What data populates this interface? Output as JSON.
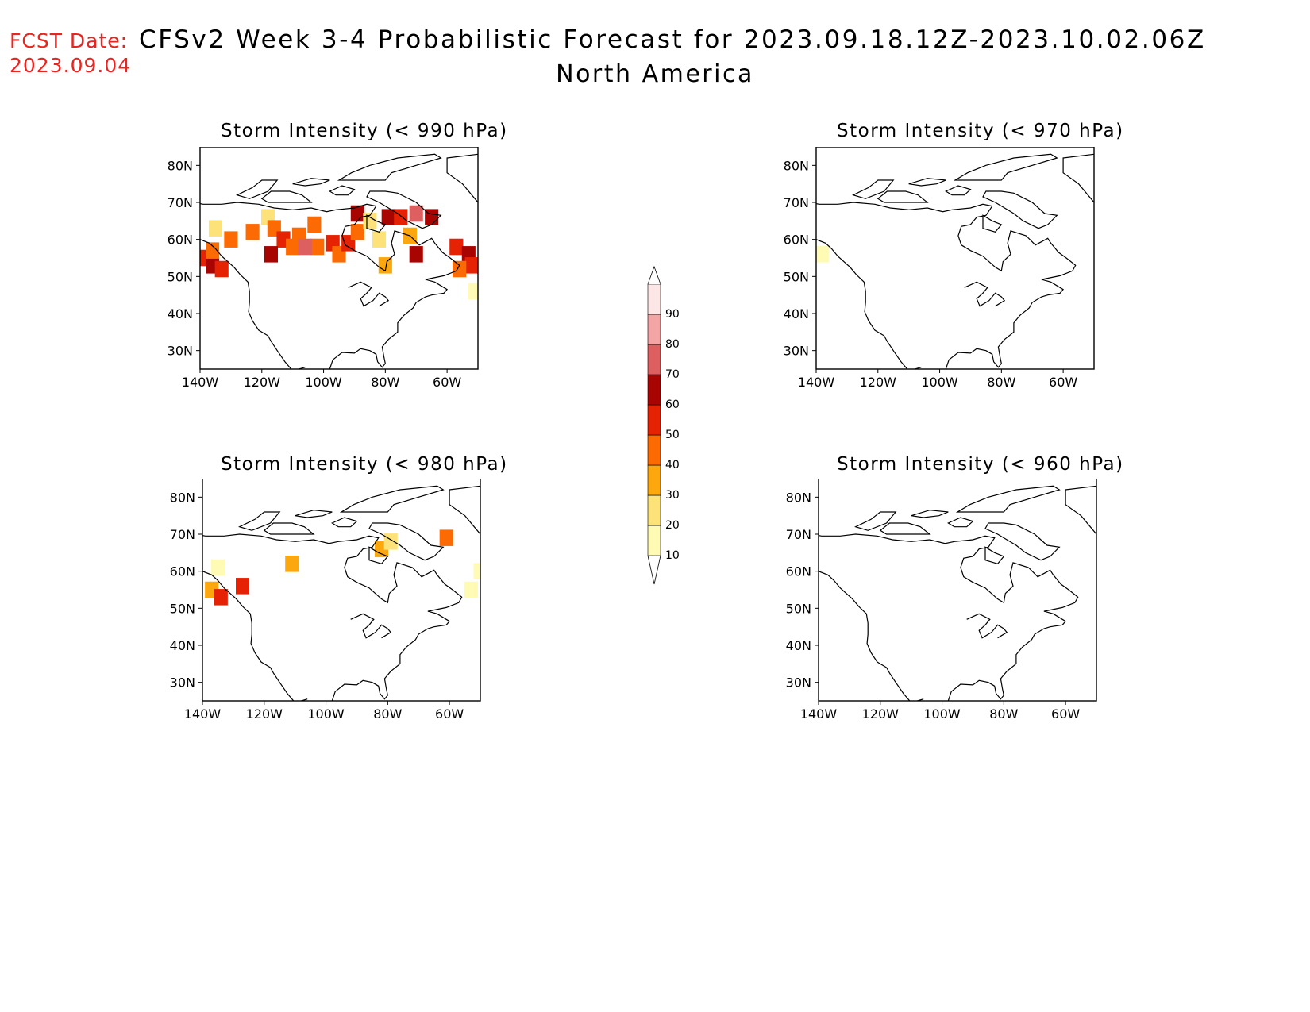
{
  "header": {
    "fcst_label": "FCST Date:",
    "fcst_date": "2023.09.04",
    "title": "CFSv2 Week 3-4 Probabilistic Forecast for 2023.09.18.12Z-2023.10.02.06Z",
    "region": "North America"
  },
  "chart_data": [
    {
      "type": "heatmap",
      "title": "Storm Intensity (< 990 hPa)",
      "lat_ticks": [
        "80N",
        "70N",
        "60N",
        "50N",
        "40N",
        "30N"
      ],
      "lon_ticks": [
        "140W",
        "120W",
        "100W",
        "80W",
        "60W"
      ],
      "lat_range": [
        25,
        85
      ],
      "lon_range": [
        -140,
        -50
      ],
      "cells": [
        {
          "lat": 55,
          "lon": -138,
          "p": 55
        },
        {
          "lat": 53,
          "lon": -136,
          "p": 60
        },
        {
          "lat": 52,
          "lon": -133,
          "p": 50
        },
        {
          "lat": 57,
          "lon": -136,
          "p": 45
        },
        {
          "lat": 63,
          "lon": -135,
          "p": 25
        },
        {
          "lat": 60,
          "lon": -130,
          "p": 40
        },
        {
          "lat": 62,
          "lon": -123,
          "p": 45
        },
        {
          "lat": 66,
          "lon": -118,
          "p": 25
        },
        {
          "lat": 63,
          "lon": -116,
          "p": 45
        },
        {
          "lat": 60,
          "lon": -113,
          "p": 55
        },
        {
          "lat": 58,
          "lon": -110,
          "p": 45
        },
        {
          "lat": 61,
          "lon": -108,
          "p": 40
        },
        {
          "lat": 64,
          "lon": -103,
          "p": 45
        },
        {
          "lat": 58,
          "lon": -102,
          "p": 40
        },
        {
          "lat": 59,
          "lon": -97,
          "p": 55
        },
        {
          "lat": 56,
          "lon": -95,
          "p": 45
        },
        {
          "lat": 59,
          "lon": -92,
          "p": 50
        },
        {
          "lat": 62,
          "lon": -89,
          "p": 40
        },
        {
          "lat": 67,
          "lon": -89,
          "p": 65
        },
        {
          "lat": 65,
          "lon": -85,
          "p": 25
        },
        {
          "lat": 60,
          "lon": -82,
          "p": 25
        },
        {
          "lat": 66,
          "lon": -79,
          "p": 60
        },
        {
          "lat": 66,
          "lon": -75,
          "p": 55
        },
        {
          "lat": 67,
          "lon": -70,
          "p": 70
        },
        {
          "lat": 66,
          "lon": -65,
          "p": 60
        },
        {
          "lat": 61,
          "lon": -72,
          "p": 35
        },
        {
          "lat": 56,
          "lon": -70,
          "p": 60
        },
        {
          "lat": 53,
          "lon": -80,
          "p": 35
        },
        {
          "lat": 58,
          "lon": -57,
          "p": 55
        },
        {
          "lat": 56,
          "lon": -53,
          "p": 65
        },
        {
          "lat": 53,
          "lon": -52,
          "p": 55
        },
        {
          "lat": 52,
          "lon": -56,
          "p": 45
        },
        {
          "lat": 46,
          "lon": -51,
          "p": 15
        },
        {
          "lat": 58,
          "lon": -106,
          "p": 70
        },
        {
          "lat": 56,
          "lon": -117,
          "p": 60
        }
      ]
    },
    {
      "type": "heatmap",
      "title": "Storm Intensity (< 970 hPa)",
      "lat_ticks": [
        "80N",
        "70N",
        "60N",
        "50N",
        "40N",
        "30N"
      ],
      "lon_ticks": [
        "140W",
        "120W",
        "100W",
        "80W",
        "60W"
      ],
      "lat_range": [
        25,
        85
      ],
      "lon_range": [
        -140,
        -50
      ],
      "cells": [
        {
          "lat": 56,
          "lon": -138,
          "p": 15
        }
      ]
    },
    {
      "type": "heatmap",
      "title": "Storm Intensity (< 980 hPa)",
      "lat_ticks": [
        "80N",
        "70N",
        "60N",
        "50N",
        "40N",
        "30N"
      ],
      "lon_ticks": [
        "140W",
        "120W",
        "100W",
        "80W",
        "60W"
      ],
      "lat_range": [
        25,
        85
      ],
      "lon_range": [
        -140,
        -50
      ],
      "cells": [
        {
          "lat": 55,
          "lon": -137,
          "p": 35
        },
        {
          "lat": 53,
          "lon": -134,
          "p": 50
        },
        {
          "lat": 61,
          "lon": -135,
          "p": 15
        },
        {
          "lat": 56,
          "lon": -127,
          "p": 50
        },
        {
          "lat": 62,
          "lon": -111,
          "p": 35
        },
        {
          "lat": 66,
          "lon": -82,
          "p": 30
        },
        {
          "lat": 68,
          "lon": -79,
          "p": 20
        },
        {
          "lat": 69,
          "lon": -61,
          "p": 45
        },
        {
          "lat": 55,
          "lon": -53,
          "p": 15
        },
        {
          "lat": 60,
          "lon": -50,
          "p": 10
        }
      ]
    },
    {
      "type": "heatmap",
      "title": "Storm Intensity (< 960 hPa)",
      "lat_ticks": [
        "80N",
        "70N",
        "60N",
        "50N",
        "40N",
        "30N"
      ],
      "lon_ticks": [
        "140W",
        "120W",
        "100W",
        "80W",
        "60W"
      ],
      "lat_range": [
        25,
        85
      ],
      "lon_range": [
        -140,
        -50
      ],
      "cells": []
    }
  ],
  "colorbar": {
    "levels": [
      "10",
      "20",
      "30",
      "40",
      "50",
      "60",
      "70",
      "80",
      "90"
    ],
    "colors": [
      "#fffab4",
      "#fde27a",
      "#fca70d",
      "#fc6a03",
      "#e52204",
      "#a80502",
      "#dd5f5f",
      "#f3a4a4",
      "#fde6e6"
    ]
  }
}
